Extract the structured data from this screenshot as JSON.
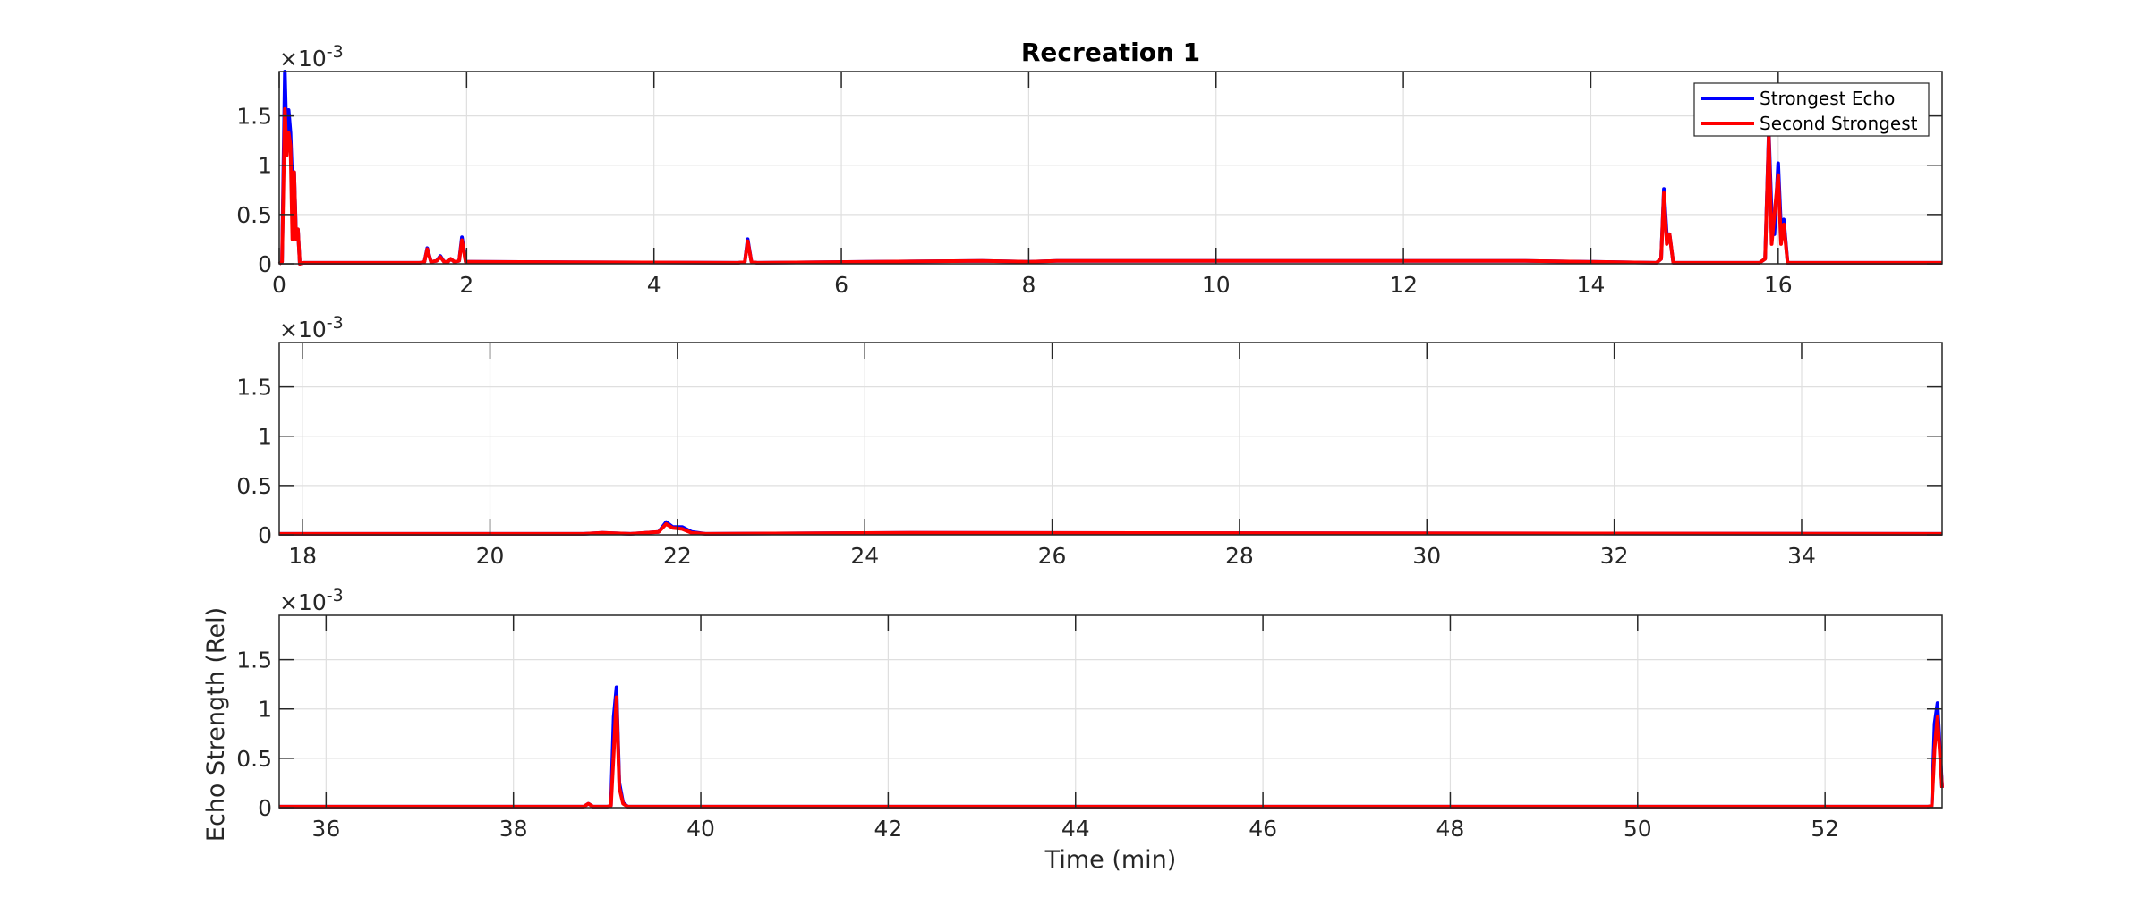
{
  "chart_data": {
    "type": "line",
    "title": "Recreation 1",
    "xlabel": "Time (min)",
    "ylabel": "Echo Strength (Rel)",
    "y_multiplier": "×10^-3",
    "grid": true,
    "legend": {
      "position": "top-right of first subplot",
      "entries": [
        {
          "name": "Strongest Echo",
          "color": "#0000ff"
        },
        {
          "name": "Second Strongest",
          "color": "#ff0000"
        }
      ]
    },
    "subplots": [
      {
        "xlim": [
          0,
          17.75
        ],
        "ylim": [
          0,
          1.95
        ],
        "xticks": [
          0,
          2,
          4,
          6,
          8,
          10,
          12,
          14,
          16
        ],
        "yticks": [
          0,
          0.5,
          1,
          1.5
        ],
        "series": [
          {
            "name": "Strongest Echo",
            "color": "#0000ff",
            "x": [
              0,
              0.03,
              0.06,
              0.08,
              0.1,
              0.12,
              0.14,
              0.16,
              0.18,
              0.2,
              0.22,
              0.25,
              0.3,
              1.5,
              1.55,
              1.58,
              1.62,
              1.68,
              1.72,
              1.76,
              1.8,
              1.83,
              1.87,
              1.92,
              1.95,
              1.99,
              2.05,
              4.9,
              4.97,
              5.0,
              5.04,
              5.1,
              7.5,
              8.0,
              8.3,
              11.9,
              13.3,
              14.7,
              14.75,
              14.78,
              14.81,
              14.84,
              14.88,
              15.8,
              15.86,
              15.9,
              15.93,
              15.96,
              16.0,
              16.03,
              16.06,
              16.1,
              16.2,
              17.75
            ],
            "y": [
              0,
              0.02,
              1.95,
              1.2,
              1.56,
              1.33,
              0.8,
              0.93,
              0.3,
              0.35,
              0.0,
              0.01,
              0.01,
              0.01,
              0.02,
              0.16,
              0.02,
              0.03,
              0.08,
              0.02,
              0.02,
              0.05,
              0.02,
              0.03,
              0.27,
              0.02,
              0.02,
              0.01,
              0.02,
              0.25,
              0.02,
              0.01,
              0.03,
              0.02,
              0.03,
              0.03,
              0.03,
              0.01,
              0.05,
              0.76,
              0.3,
              0.3,
              0.01,
              0.01,
              0.05,
              1.35,
              0.5,
              0.3,
              1.02,
              0.35,
              0.45,
              0.01,
              0.01,
              0.01
            ]
          },
          {
            "name": "Second Strongest",
            "color": "#ff0000",
            "x": [
              0,
              0.03,
              0.06,
              0.08,
              0.1,
              0.12,
              0.14,
              0.16,
              0.18,
              0.2,
              0.22,
              0.25,
              0.3,
              1.5,
              1.55,
              1.58,
              1.62,
              1.68,
              1.72,
              1.76,
              1.8,
              1.83,
              1.87,
              1.92,
              1.95,
              1.99,
              2.05,
              4.9,
              4.97,
              5.0,
              5.04,
              5.1,
              7.5,
              8.0,
              8.3,
              11.9,
              13.3,
              14.7,
              14.75,
              14.78,
              14.81,
              14.84,
              14.88,
              15.8,
              15.86,
              15.9,
              15.93,
              15.96,
              16.0,
              16.03,
              16.06,
              16.1,
              16.2,
              17.75
            ],
            "y": [
              0,
              0.02,
              1.57,
              1.1,
              1.33,
              1.2,
              0.25,
              0.93,
              0.25,
              0.35,
              0.0,
              0.01,
              0.01,
              0.01,
              0.02,
              0.15,
              0.02,
              0.03,
              0.07,
              0.02,
              0.02,
              0.05,
              0.02,
              0.03,
              0.24,
              0.02,
              0.02,
              0.01,
              0.02,
              0.23,
              0.02,
              0.01,
              0.03,
              0.02,
              0.03,
              0.03,
              0.03,
              0.01,
              0.05,
              0.72,
              0.2,
              0.3,
              0.01,
              0.01,
              0.05,
              1.3,
              0.2,
              0.5,
              0.9,
              0.2,
              0.4,
              0.01,
              0.01,
              0.01
            ]
          }
        ]
      },
      {
        "xlim": [
          17.75,
          35.5
        ],
        "ylim": [
          0,
          1.95
        ],
        "xticks": [
          18,
          20,
          22,
          24,
          26,
          28,
          30,
          32,
          34
        ],
        "yticks": [
          0,
          0.5,
          1,
          1.5
        ],
        "series": [
          {
            "name": "Strongest Echo",
            "color": "#0000ff",
            "x": [
              17.75,
              21.0,
              21.2,
              21.5,
              21.8,
              21.88,
              21.95,
              22.05,
              22.15,
              22.3,
              24.5,
              35.5
            ],
            "y": [
              0.01,
              0.01,
              0.02,
              0.01,
              0.03,
              0.13,
              0.08,
              0.08,
              0.03,
              0.01,
              0.02,
              0.01
            ]
          },
          {
            "name": "Second Strongest",
            "color": "#ff0000",
            "x": [
              17.75,
              21.0,
              21.2,
              21.5,
              21.8,
              21.88,
              21.95,
              22.05,
              22.15,
              22.3,
              24.5,
              35.5
            ],
            "y": [
              0.01,
              0.01,
              0.02,
              0.01,
              0.03,
              0.11,
              0.07,
              0.06,
              0.02,
              0.01,
              0.02,
              0.01
            ]
          }
        ]
      },
      {
        "xlim": [
          35.5,
          53.25
        ],
        "ylim": [
          0,
          1.95
        ],
        "xticks": [
          36,
          38,
          40,
          42,
          44,
          46,
          48,
          50,
          52
        ],
        "yticks": [
          0,
          0.5,
          1,
          1.5
        ],
        "series": [
          {
            "name": "Strongest Echo",
            "color": "#0000ff",
            "x": [
              35.5,
              38.75,
              38.8,
              38.85,
              39.0,
              39.04,
              39.07,
              39.1,
              39.13,
              39.17,
              39.22,
              53.1,
              53.14,
              53.17,
              53.2,
              53.25
            ],
            "y": [
              0.01,
              0.01,
              0.04,
              0.01,
              0.01,
              0.02,
              0.92,
              1.22,
              0.25,
              0.05,
              0.01,
              0.01,
              0.02,
              0.85,
              1.06,
              0.2
            ]
          },
          {
            "name": "Second Strongest",
            "color": "#ff0000",
            "x": [
              35.5,
              38.75,
              38.8,
              38.85,
              39.0,
              39.04,
              39.07,
              39.1,
              39.13,
              39.17,
              39.22,
              53.1,
              53.14,
              53.17,
              53.2,
              53.25
            ],
            "y": [
              0.01,
              0.01,
              0.04,
              0.01,
              0.01,
              0.02,
              0.55,
              1.12,
              0.2,
              0.04,
              0.01,
              0.01,
              0.02,
              0.6,
              0.92,
              0.2
            ]
          }
        ]
      }
    ]
  }
}
